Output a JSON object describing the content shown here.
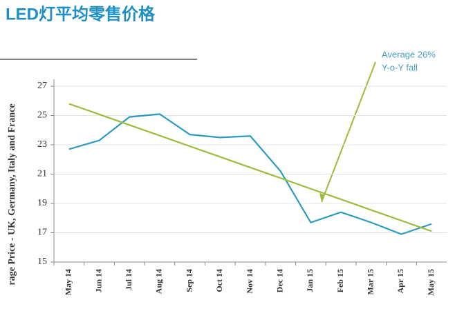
{
  "chart_data": {
    "type": "line",
    "title": "LED灯平均零售价格",
    "y_label": "rage Price - UK, Germany, Italy and France",
    "annotation": [
      "Average 26%",
      "Y-o-Y fall"
    ],
    "categories": [
      "May 14",
      "Jun 14",
      "Jul 14",
      "Aug 14",
      "Sep 14",
      "Oct 14",
      "Nov 14",
      "Dec 14",
      "Jan 15",
      "Feb 15",
      "Mar 15",
      "Apr 15",
      "May 15"
    ],
    "series": [
      {
        "color": "#2a9bbd",
        "values": [
          22.7,
          23.3,
          24.9,
          25.1,
          23.7,
          23.5,
          23.6,
          21.2,
          17.7,
          18.4,
          17.7,
          16.9,
          17.6
        ]
      },
      {
        "color": "#9bbb3b",
        "values": [
          25.8,
          25.08,
          24.35,
          23.63,
          22.9,
          22.18,
          21.45,
          20.73,
          20.0,
          19.28,
          18.55,
          17.83,
          17.1
        ]
      }
    ],
    "ylim": [
      15,
      27
    ],
    "yticks": [
      15,
      17,
      19,
      21,
      23,
      25,
      27
    ],
    "grid": true
  }
}
